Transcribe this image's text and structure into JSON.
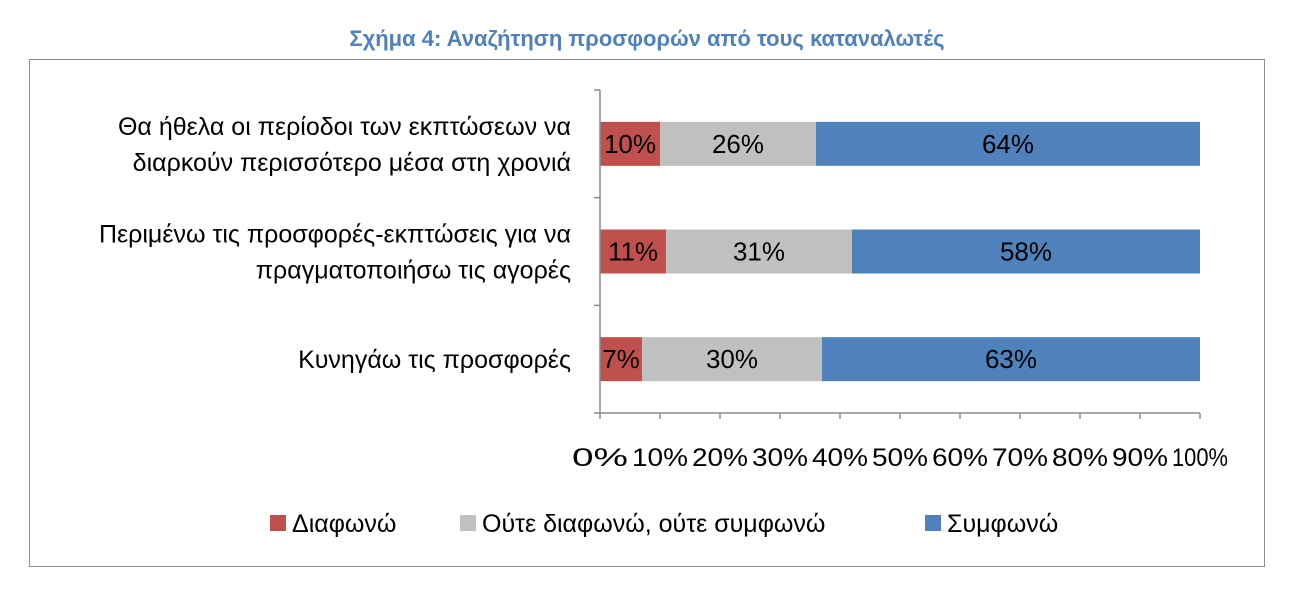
{
  "chart_data": {
    "type": "bar",
    "orientation": "horizontal",
    "stacked": true,
    "percent_stacked": true,
    "title": "Σχήμα 4: Αναζήτηση προσφορών από τους καταναλωτές",
    "categories": [
      [
        "Θα ήθελα οι περίοδοι των εκπτώσεων να",
        "διαρκούν περισσότερο μέσα στη χρονιά"
      ],
      [
        "Περιμένω τις προσφορές-εκπτώσεις για να",
        "πραγματοποιήσω τις αγορές"
      ],
      [
        "Κυνηγάω τις προσφορές"
      ]
    ],
    "series": [
      {
        "name": "Διαφωνώ",
        "color": "#c0504d",
        "values": [
          10,
          11,
          7
        ],
        "labels": [
          "10%",
          "11%",
          "7%"
        ]
      },
      {
        "name": "Ούτε διαφωνώ, ούτε συμφωνώ",
        "color": "#c0c0c0",
        "values": [
          26,
          31,
          30
        ],
        "labels": [
          "26%",
          "31%",
          "30%"
        ]
      },
      {
        "name": "Συμφωνώ",
        "color": "#4f81bd",
        "values": [
          64,
          58,
          63
        ],
        "labels": [
          "64%",
          "58%",
          "63%"
        ]
      }
    ],
    "xlim": [
      0,
      100
    ],
    "xticks": [
      "0%",
      "10%",
      "20%",
      "30%",
      "40%",
      "50%",
      "60%",
      "70%",
      "80%",
      "90%",
      "100%"
    ],
    "grid": false,
    "legend_position": "bottom",
    "title_color": "#4f81bd"
  }
}
